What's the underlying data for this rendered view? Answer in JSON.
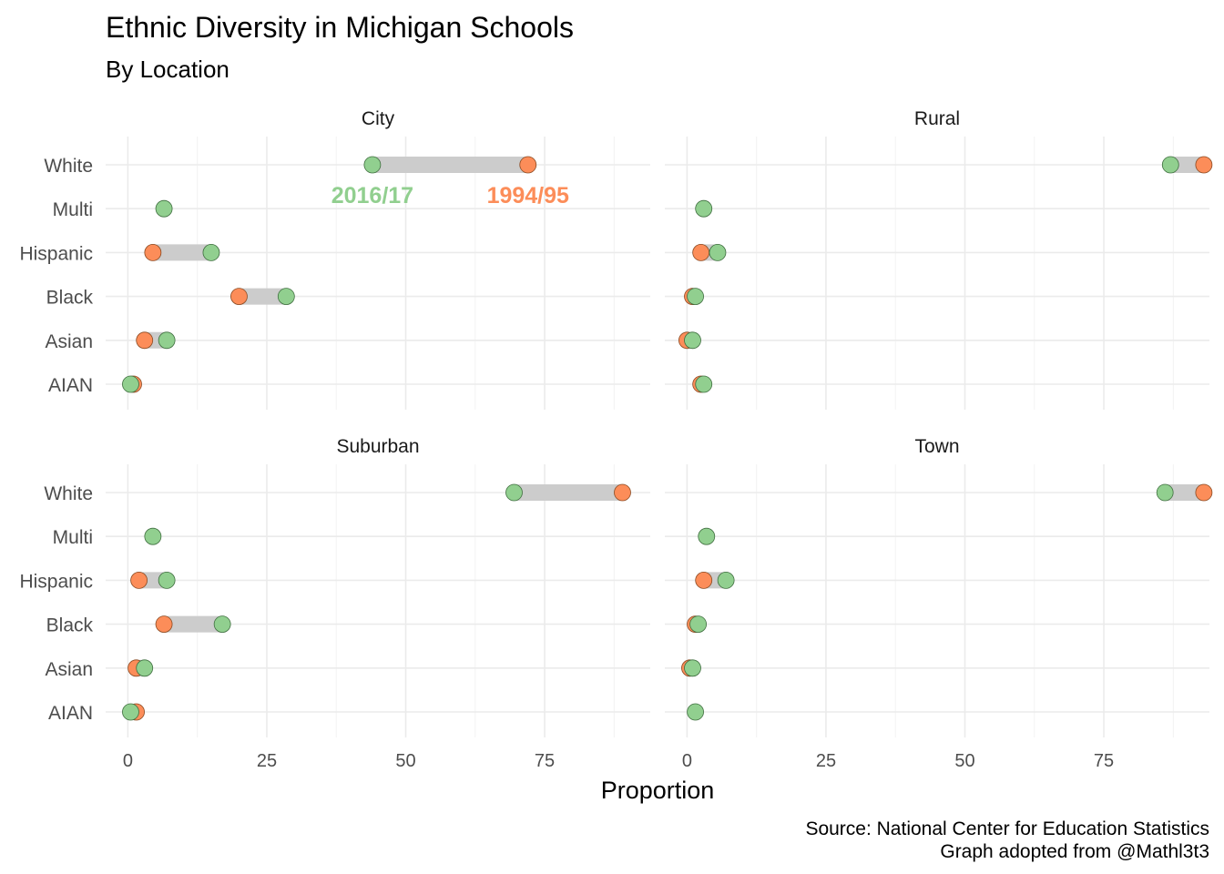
{
  "chart_data": {
    "type": "dumbbell",
    "title": "Ethnic Diversity in Michigan Schools",
    "subtitle": "By Location",
    "xlabel": "Proportion",
    "caption_lines": [
      "Source: National Center for Education Statistics",
      "Graph adopted from @Mathl3t3"
    ],
    "xlim": [
      -4,
      94
    ],
    "x_ticks": [
      0,
      25,
      50,
      75
    ],
    "categories": [
      "White",
      "Multi",
      "Hispanic",
      "Black",
      "Asian",
      "AIAN"
    ],
    "series_colors": {
      "1994/95": "#fc8d59",
      "2016/17": "#91cf8f"
    },
    "connector_color": "#cccccc",
    "grid": true,
    "annotations": [
      {
        "text": "2016/17",
        "panel": "City",
        "x": 44,
        "category": "Multi",
        "color": "#91cf8f"
      },
      {
        "text": "1994/95",
        "panel": "City",
        "x": 72,
        "category": "Multi",
        "color": "#fc8d59"
      }
    ],
    "panels": [
      {
        "name": "City",
        "values": {
          "1994/95": [
            72,
            null,
            4.5,
            20,
            3,
            1
          ],
          "2016/17": [
            44,
            6.5,
            15,
            28.5,
            7,
            0.5
          ]
        }
      },
      {
        "name": "Rural",
        "values": {
          "1994/95": [
            93,
            null,
            2.5,
            1,
            0,
            2.5
          ],
          "2016/17": [
            87,
            3,
            5.5,
            1.5,
            1,
            3
          ]
        }
      },
      {
        "name": "Suburban",
        "values": {
          "1994/95": [
            89,
            null,
            2,
            6.5,
            1.5,
            1.5
          ],
          "2016/17": [
            69.5,
            4.5,
            7,
            17,
            3,
            0.5
          ]
        }
      },
      {
        "name": "Town",
        "values": {
          "1994/95": [
            93,
            null,
            3,
            1.5,
            0.5,
            null
          ],
          "2016/17": [
            86,
            3.5,
            7,
            2,
            1,
            1.5
          ]
        }
      }
    ]
  }
}
